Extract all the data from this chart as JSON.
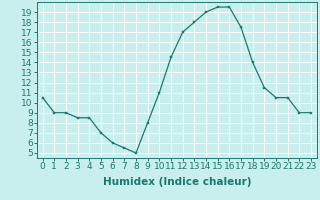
{
  "x": [
    0,
    1,
    2,
    3,
    4,
    5,
    6,
    7,
    8,
    9,
    10,
    11,
    12,
    13,
    14,
    15,
    16,
    17,
    18,
    19,
    20,
    21,
    22,
    23
  ],
  "y": [
    10.5,
    9.0,
    9.0,
    8.5,
    8.5,
    7.0,
    6.0,
    5.5,
    5.0,
    8.0,
    11.0,
    14.5,
    17.0,
    18.0,
    19.0,
    19.5,
    19.5,
    17.5,
    14.0,
    11.5,
    10.5,
    10.5,
    9.0,
    9.0
  ],
  "line_color": "#1a7a6e",
  "marker_color": "#1a7a6e",
  "bg_color": "#c8eeee",
  "grid_color": "#ffffff",
  "xlabel": "Humidex (Indice chaleur)",
  "ylabel_ticks": [
    5,
    6,
    7,
    8,
    9,
    10,
    11,
    12,
    13,
    14,
    15,
    16,
    17,
    18,
    19
  ],
  "ylim": [
    4.5,
    20.0
  ],
  "xlim": [
    -0.5,
    23.5
  ],
  "tick_fontsize": 6.5,
  "label_fontsize": 7.5
}
